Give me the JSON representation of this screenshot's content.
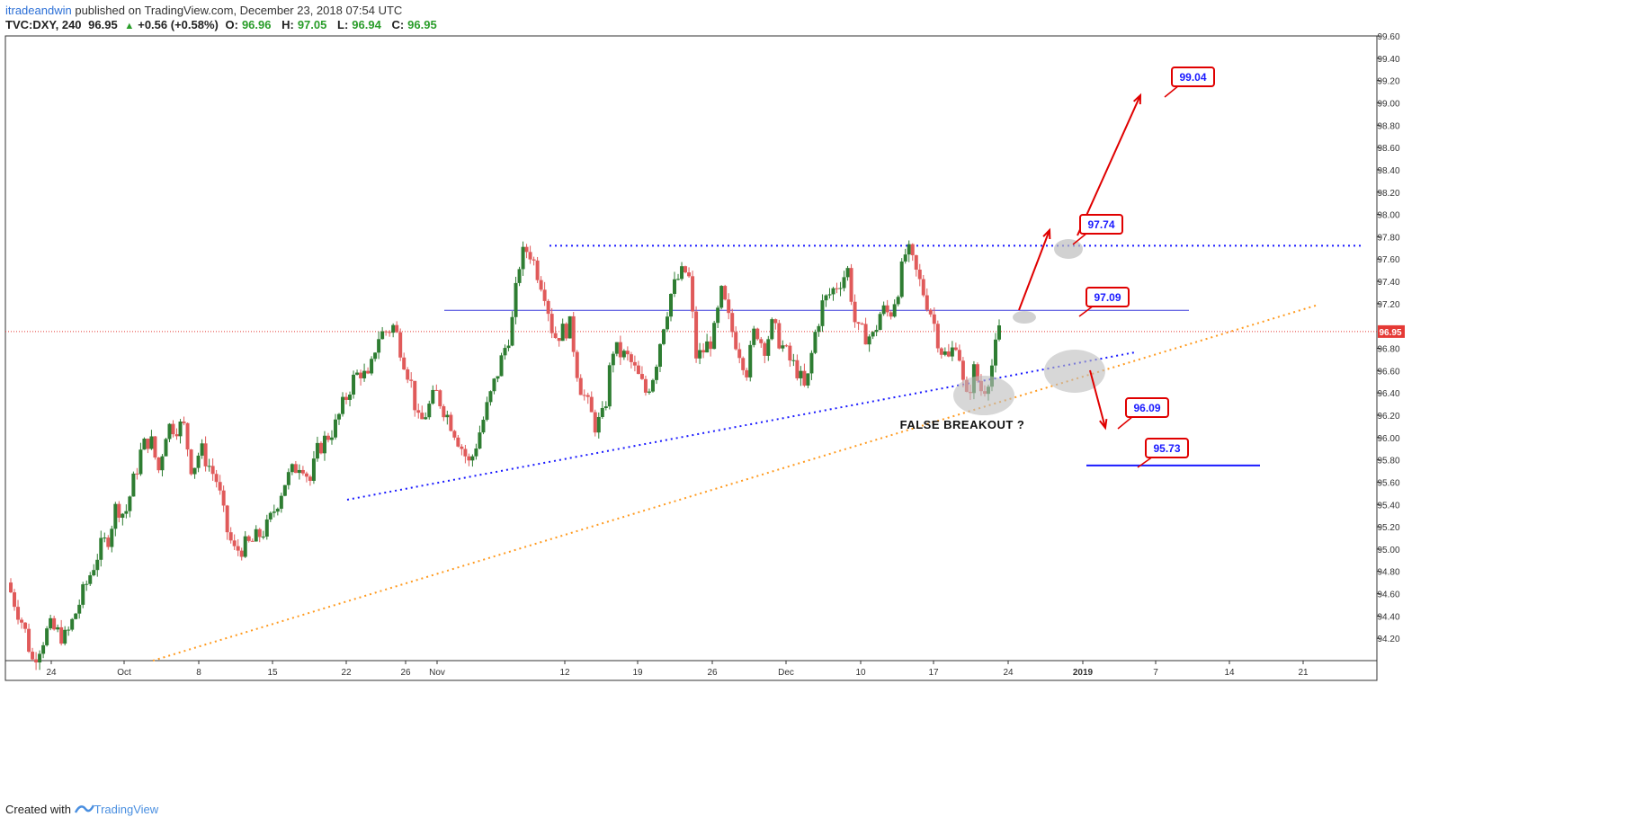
{
  "header": {
    "author": "itradeandwin",
    "published": "published on TradingView.com, December 23, 2018 07:54 UTC",
    "symbol": "TVC:DXY, 240",
    "last": "96.95",
    "change": "+0.56 (+0.58%)",
    "open_label": "O:",
    "open": "96.96",
    "high_label": "H:",
    "high": "97.05",
    "low_label": "L:",
    "low": "96.94",
    "close_label": "C:",
    "close": "96.95"
  },
  "footer": {
    "created_with": "Created with",
    "brand": "TradingView"
  },
  "colors": {
    "up": "#2e7d32",
    "down": "#e05a5a",
    "blue_line": "#1a1aff",
    "orange_line": "#ff9a1f",
    "price_line": "#e53935",
    "label_border": "#e00000"
  },
  "chart_data": {
    "type": "candlestick",
    "symbol": "TVC:DXY",
    "timeframe": "240",
    "ylim": [
      94.0,
      99.6
    ],
    "y_ticks": [
      "94.20",
      "94.40",
      "94.60",
      "94.80",
      "95.00",
      "95.20",
      "95.40",
      "95.60",
      "95.80",
      "96.00",
      "96.20",
      "96.40",
      "96.60",
      "96.80",
      "97.20",
      "97.40",
      "97.60",
      "97.80",
      "98.00",
      "98.20",
      "98.40",
      "98.60",
      "98.80",
      "99.00",
      "99.20",
      "99.40",
      "99.60"
    ],
    "x_ticks": [
      "24",
      "Oct",
      "8",
      "15",
      "22",
      "26",
      "Nov",
      "12",
      "19",
      "26",
      "Dec",
      "10",
      "17",
      "24",
      "2019",
      "7",
      "14",
      "21"
    ],
    "last_price": "96.95",
    "price_path": [
      [
        0,
        94.7
      ],
      [
        2,
        94.3
      ],
      [
        3,
        94.0
      ],
      [
        5,
        94.3
      ],
      [
        7,
        94.2
      ],
      [
        9,
        94.6
      ],
      [
        11,
        95.0
      ],
      [
        12,
        95.1
      ],
      [
        13,
        95.4
      ],
      [
        14,
        95.3
      ],
      [
        16,
        95.9
      ],
      [
        17,
        96.0
      ],
      [
        18,
        95.7
      ],
      [
        19,
        96.1
      ],
      [
        21,
        96.1
      ],
      [
        22,
        95.7
      ],
      [
        23,
        95.9
      ],
      [
        25,
        95.6
      ],
      [
        26,
        95.2
      ],
      [
        27,
        94.98
      ],
      [
        29,
        95.05
      ],
      [
        31,
        95.2
      ],
      [
        33,
        95.6
      ],
      [
        35,
        95.8
      ],
      [
        36,
        95.6
      ],
      [
        37,
        95.9
      ],
      [
        38,
        96.0
      ],
      [
        39,
        96.1
      ],
      [
        41,
        96.5
      ],
      [
        42,
        96.6
      ],
      [
        43,
        96.5
      ],
      [
        44,
        96.9
      ],
      [
        46,
        97.0
      ],
      [
        48,
        96.5
      ],
      [
        49,
        96.1
      ],
      [
        51,
        96.4
      ],
      [
        53,
        96.1
      ],
      [
        55,
        95.75
      ],
      [
        56,
        96.0
      ],
      [
        58,
        96.5
      ],
      [
        60,
        97.0
      ],
      [
        61,
        97.6
      ],
      [
        62,
        97.7
      ],
      [
        64,
        97.3
      ],
      [
        65,
        96.9
      ],
      [
        67,
        97.0
      ],
      [
        68,
        96.5
      ],
      [
        69,
        96.3
      ],
      [
        70,
        96.1
      ],
      [
        71,
        96.2
      ],
      [
        72,
        96.8
      ],
      [
        74,
        96.7
      ],
      [
        76,
        96.4
      ],
      [
        77,
        96.6
      ],
      [
        78,
        97.0
      ],
      [
        79,
        97.3
      ],
      [
        80,
        97.45
      ],
      [
        81,
        97.5
      ],
      [
        82,
        96.7
      ],
      [
        84,
        96.9
      ],
      [
        85,
        97.3
      ],
      [
        86,
        97.0
      ],
      [
        88,
        96.6
      ],
      [
        89,
        97.0
      ],
      [
        90,
        96.8
      ],
      [
        91,
        97.0
      ],
      [
        93,
        96.7
      ],
      [
        94,
        96.6
      ],
      [
        95,
        96.4
      ],
      [
        96,
        96.9
      ],
      [
        97,
        97.2
      ],
      [
        99,
        97.4
      ],
      [
        100,
        97.5
      ],
      [
        101,
        96.95
      ],
      [
        103,
        96.9
      ],
      [
        104,
        97.15
      ],
      [
        105,
        97.1
      ],
      [
        106,
        97.35
      ],
      [
        107,
        97.7
      ],
      [
        109,
        97.3
      ],
      [
        110,
        97.1
      ],
      [
        111,
        96.8
      ],
      [
        112,
        96.7
      ],
      [
        113,
        96.9
      ],
      [
        114,
        96.3
      ],
      [
        115,
        96.6
      ],
      [
        116,
        96.4
      ],
      [
        117,
        96.6
      ],
      [
        118,
        96.95
      ]
    ],
    "levels": [
      {
        "label": "99.04",
        "value": 99.04
      },
      {
        "label": "97.74",
        "value": 97.74
      },
      {
        "label": "97.09",
        "value": 97.09
      },
      {
        "label": "96.09",
        "value": 96.09
      },
      {
        "label": "95.73",
        "value": 95.73
      }
    ],
    "resistance_level": 97.72,
    "horizontal_line": 97.14,
    "support_line_95_73": 95.75,
    "annotations": [
      "FALSE BREAKOUT ?"
    ]
  }
}
